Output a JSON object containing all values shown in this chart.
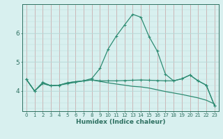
{
  "title": "",
  "xlabel": "Humidex (Indice chaleur)",
  "x": [
    0,
    1,
    2,
    3,
    4,
    5,
    6,
    7,
    8,
    9,
    10,
    11,
    12,
    13,
    14,
    15,
    16,
    17,
    18,
    19,
    20,
    21,
    22,
    23
  ],
  "line1": [
    4.4,
    4.0,
    4.3,
    4.18,
    4.2,
    4.25,
    4.3,
    4.35,
    4.43,
    4.78,
    5.45,
    5.9,
    6.28,
    6.65,
    6.55,
    5.88,
    5.38,
    4.58,
    4.35,
    4.42,
    4.55,
    4.35,
    4.2,
    3.5
  ],
  "line2": [
    4.4,
    4.0,
    4.26,
    4.18,
    4.2,
    4.28,
    4.32,
    4.35,
    4.38,
    4.35,
    4.35,
    4.35,
    4.36,
    4.37,
    4.38,
    4.37,
    4.36,
    4.35,
    4.35,
    4.42,
    4.55,
    4.35,
    4.2,
    3.5
  ],
  "line3": [
    4.4,
    4.0,
    4.26,
    4.18,
    4.2,
    4.28,
    4.32,
    4.35,
    4.38,
    4.33,
    4.28,
    4.24,
    4.2,
    4.16,
    4.14,
    4.1,
    4.04,
    3.98,
    3.93,
    3.88,
    3.82,
    3.76,
    3.68,
    3.55
  ],
  "line_color": "#2d8b72",
  "bg_color": "#d8f0ef",
  "grid_color_v": "#c8a0a0",
  "grid_color_h": "#b8d8d8",
  "axis_color": "#2d7060",
  "ylim": [
    3.3,
    7.0
  ],
  "yticks": [
    4,
    5,
    6
  ],
  "xlim": [
    -0.5,
    23.5
  ]
}
